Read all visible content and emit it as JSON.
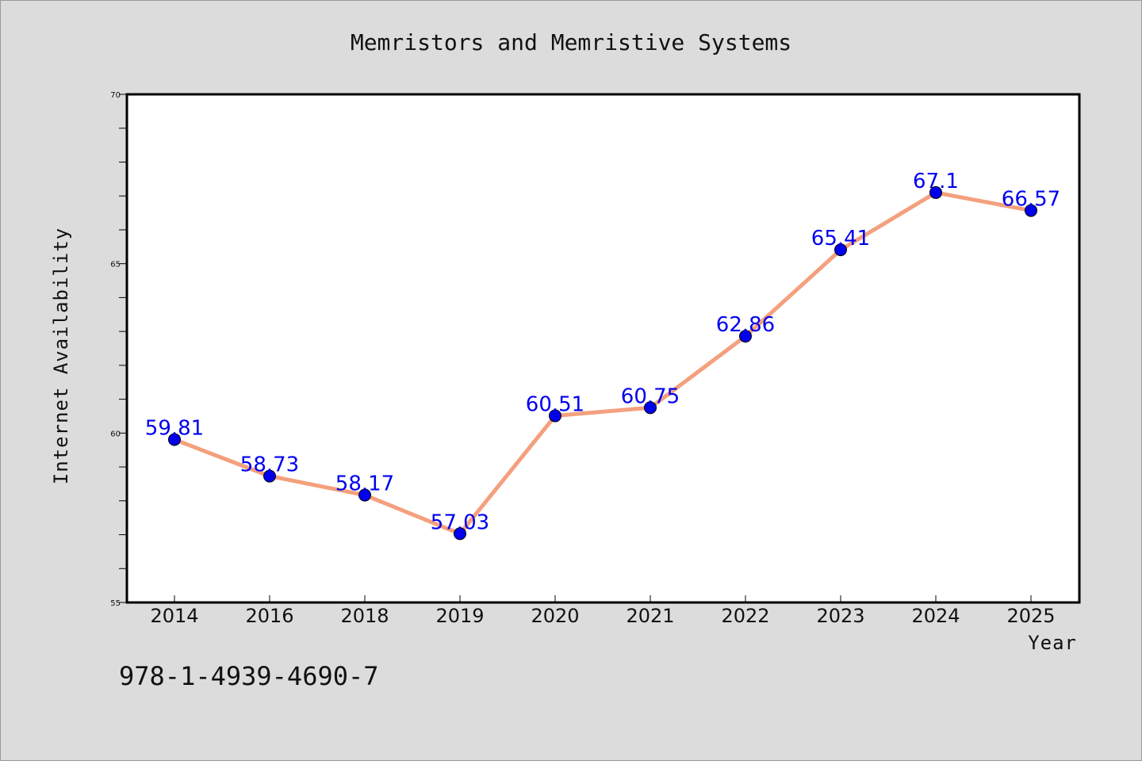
{
  "chart_data": {
    "type": "line",
    "title": "Memristors and Memristive Systems",
    "xlabel": "Year",
    "ylabel": "Internet Availability",
    "categories": [
      "2014",
      "2016",
      "2018",
      "2019",
      "2020",
      "2021",
      "2022",
      "2023",
      "2024",
      "2025"
    ],
    "series": [
      {
        "values": [
          59.81,
          58.73,
          58.17,
          57.03,
          60.51,
          60.75,
          62.86,
          65.41,
          67.1,
          66.57
        ],
        "labels": [
          "59.81",
          "58.73",
          "58.17",
          "57.03",
          "60.51",
          "60.75",
          "62.86",
          "65.41",
          "67.1",
          "66.57"
        ]
      }
    ],
    "ylim": [
      55,
      70
    ],
    "yticks": [
      "55",
      "60",
      "65",
      "70"
    ],
    "grid": false,
    "colors": {
      "line": "#f4a07e",
      "marker": "#0000ee",
      "label": "#0000ee",
      "plot_bg": "#ffffff",
      "page_bg": "#dcdcdc"
    }
  },
  "footer_text": "978-1-4939-4690-7"
}
